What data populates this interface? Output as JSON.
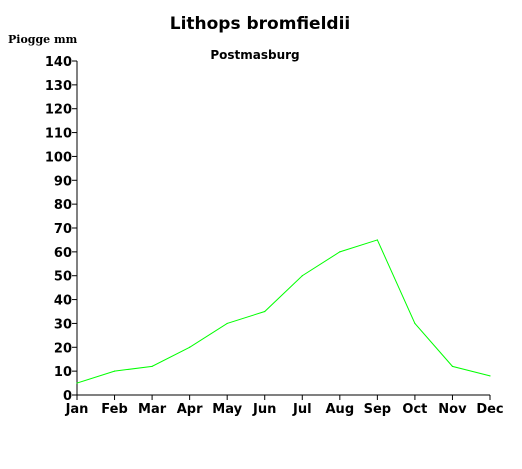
{
  "chart_data": {
    "type": "line",
    "title": "Lithops bromfieldii",
    "subtitle": "Postmasburg",
    "ylabel": "Piogge mm",
    "xlabel": "",
    "categories": [
      "Jan",
      "Feb",
      "Mar",
      "Apr",
      "May",
      "Jun",
      "Jul",
      "Aug",
      "Sep",
      "Oct",
      "Nov",
      "Dec"
    ],
    "series": [
      {
        "values": [
          5,
          10,
          12,
          20,
          30,
          35,
          50,
          60,
          65,
          30,
          12,
          8
        ],
        "color": "#00ff00"
      }
    ],
    "ylim": [
      0,
      140
    ],
    "yticks": [
      0,
      10,
      20,
      30,
      40,
      50,
      60,
      70,
      80,
      90,
      100,
      110,
      120,
      130,
      140
    ],
    "grid": false,
    "legend": "none"
  }
}
